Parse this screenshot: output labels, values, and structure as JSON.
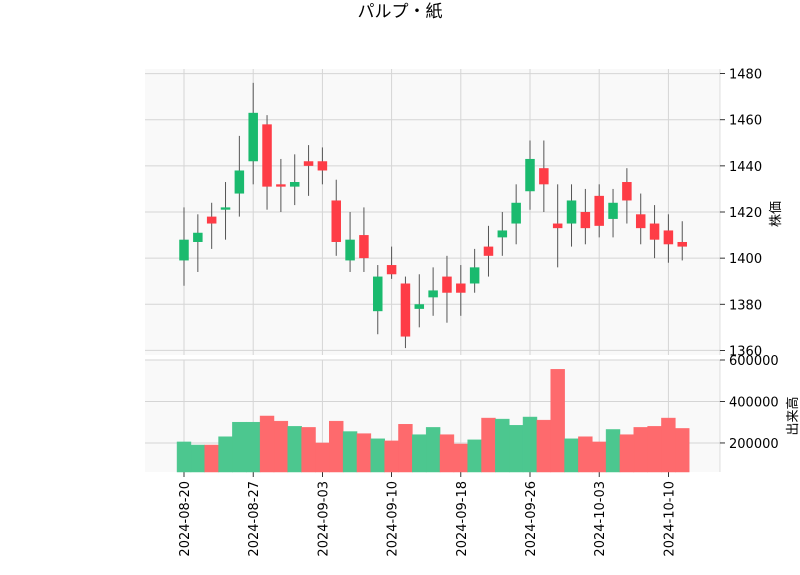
{
  "chart_data": {
    "type": "candlestick",
    "title": "パルプ・紙",
    "price_axis": {
      "label": "株価",
      "ylim": [
        1358,
        1482
      ],
      "ticks": [
        1360,
        1380,
        1400,
        1420,
        1440,
        1460,
        1480
      ],
      "tick_labels": [
        "1360",
        "1380",
        "1400",
        "1420",
        "1440",
        "1460",
        "1480"
      ]
    },
    "volume_axis": {
      "label": "出来高",
      "ylim": [
        60000,
        600000
      ],
      "ticks": [
        200000,
        400000,
        600000
      ],
      "tick_labels": [
        "200000",
        "400000",
        "600000"
      ]
    },
    "x_ticks": [
      {
        "index": 0,
        "label": "2024-08-20"
      },
      {
        "index": 5,
        "label": "2024-08-27"
      },
      {
        "index": 10,
        "label": "2024-09-03"
      },
      {
        "index": 15,
        "label": "2024-09-10"
      },
      {
        "index": 20,
        "label": "2024-09-18"
      },
      {
        "index": 25,
        "label": "2024-09-26"
      },
      {
        "index": 30,
        "label": "2024-10-03"
      },
      {
        "index": 35,
        "label": "2024-10-10"
      }
    ],
    "grid": true,
    "colors": {
      "up": "#1aba6e",
      "down": "#fe3c46",
      "up_volume": "#4cc78f",
      "down_volume": "#fe6a6d",
      "wick": "#555555",
      "grid": "#d5d5d5",
      "panel_bg": "#f9f9f9"
    },
    "candles": [
      {
        "date": "2024-08-20",
        "open": 1399,
        "high": 1422,
        "low": 1388,
        "close": 1408,
        "volume": 205000
      },
      {
        "date": "2024-08-21",
        "open": 1407,
        "high": 1419,
        "low": 1394,
        "close": 1411,
        "volume": 190000
      },
      {
        "date": "2024-08-22",
        "open": 1418,
        "high": 1424,
        "low": 1404,
        "close": 1415,
        "volume": 190000
      },
      {
        "date": "2024-08-23",
        "open": 1421,
        "high": 1433,
        "low": 1408,
        "close": 1422,
        "volume": 230000
      },
      {
        "date": "2024-08-26",
        "open": 1428,
        "high": 1453,
        "low": 1418,
        "close": 1438,
        "volume": 300000
      },
      {
        "date": "2024-08-27",
        "open": 1442,
        "high": 1476,
        "low": 1432,
        "close": 1463,
        "volume": 300000
      },
      {
        "date": "2024-08-28",
        "open": 1458,
        "high": 1462,
        "low": 1421,
        "close": 1431,
        "volume": 330000
      },
      {
        "date": "2024-08-29",
        "open": 1432,
        "high": 1443,
        "low": 1420,
        "close": 1431,
        "volume": 305000
      },
      {
        "date": "2024-08-30",
        "open": 1431,
        "high": 1445,
        "low": 1423,
        "close": 1433,
        "volume": 280000
      },
      {
        "date": "2024-09-02",
        "open": 1442,
        "high": 1449,
        "low": 1427,
        "close": 1440,
        "volume": 275000
      },
      {
        "date": "2024-09-03",
        "open": 1442,
        "high": 1448,
        "low": 1432,
        "close": 1438,
        "volume": 200000
      },
      {
        "date": "2024-09-04",
        "open": 1425,
        "high": 1434,
        "low": 1401,
        "close": 1407,
        "volume": 305000
      },
      {
        "date": "2024-09-05",
        "open": 1399,
        "high": 1420,
        "low": 1394,
        "close": 1408,
        "volume": 255000
      },
      {
        "date": "2024-09-06",
        "open": 1410,
        "high": 1422,
        "low": 1394,
        "close": 1400,
        "volume": 245000
      },
      {
        "date": "2024-09-09",
        "open": 1377,
        "high": 1397,
        "low": 1367,
        "close": 1392,
        "volume": 220000
      },
      {
        "date": "2024-09-10",
        "open": 1397,
        "high": 1405,
        "low": 1391,
        "close": 1393,
        "volume": 210000
      },
      {
        "date": "2024-09-11",
        "open": 1389,
        "high": 1392,
        "low": 1361,
        "close": 1366,
        "volume": 290000
      },
      {
        "date": "2024-09-12",
        "open": 1378,
        "high": 1393,
        "low": 1370,
        "close": 1380,
        "volume": 240000
      },
      {
        "date": "2024-09-13",
        "open": 1383,
        "high": 1396,
        "low": 1375,
        "close": 1386,
        "volume": 275000
      },
      {
        "date": "2024-09-17",
        "open": 1392,
        "high": 1401,
        "low": 1372,
        "close": 1385,
        "volume": 240000
      },
      {
        "date": "2024-09-18",
        "open": 1389,
        "high": 1397,
        "low": 1375,
        "close": 1385,
        "volume": 195000
      },
      {
        "date": "2024-09-19",
        "open": 1389,
        "high": 1404,
        "low": 1385,
        "close": 1396,
        "volume": 215000
      },
      {
        "date": "2024-09-20",
        "open": 1405,
        "high": 1414,
        "low": 1392,
        "close": 1401,
        "volume": 320000
      },
      {
        "date": "2024-09-24",
        "open": 1409,
        "high": 1420,
        "low": 1401,
        "close": 1412,
        "volume": 315000
      },
      {
        "date": "2024-09-25",
        "open": 1415,
        "high": 1432,
        "low": 1406,
        "close": 1424,
        "volume": 285000
      },
      {
        "date": "2024-09-26",
        "open": 1429,
        "high": 1451,
        "low": 1421,
        "close": 1443,
        "volume": 325000
      },
      {
        "date": "2024-09-27",
        "open": 1439,
        "high": 1451,
        "low": 1420,
        "close": 1432,
        "volume": 310000
      },
      {
        "date": "2024-09-30",
        "open": 1415,
        "high": 1432,
        "low": 1396,
        "close": 1413,
        "volume": 555000
      },
      {
        "date": "2024-10-01",
        "open": 1415,
        "high": 1432,
        "low": 1405,
        "close": 1425,
        "volume": 220000
      },
      {
        "date": "2024-10-02",
        "open": 1420,
        "high": 1430,
        "low": 1406,
        "close": 1413,
        "volume": 230000
      },
      {
        "date": "2024-10-03",
        "open": 1427,
        "high": 1432,
        "low": 1409,
        "close": 1414,
        "volume": 205000
      },
      {
        "date": "2024-10-04",
        "open": 1417,
        "high": 1430,
        "low": 1409,
        "close": 1424,
        "volume": 265000
      },
      {
        "date": "2024-10-07",
        "open": 1433,
        "high": 1439,
        "low": 1415,
        "close": 1425,
        "volume": 240000
      },
      {
        "date": "2024-10-08",
        "open": 1419,
        "high": 1428,
        "low": 1406,
        "close": 1413,
        "volume": 275000
      },
      {
        "date": "2024-10-09",
        "open": 1415,
        "high": 1423,
        "low": 1400,
        "close": 1408,
        "volume": 280000
      },
      {
        "date": "2024-10-10",
        "open": 1412,
        "high": 1419,
        "low": 1398,
        "close": 1406,
        "volume": 320000
      },
      {
        "date": "2024-10-11",
        "open": 1407,
        "high": 1416,
        "low": 1399,
        "close": 1405,
        "volume": 270000
      }
    ]
  }
}
